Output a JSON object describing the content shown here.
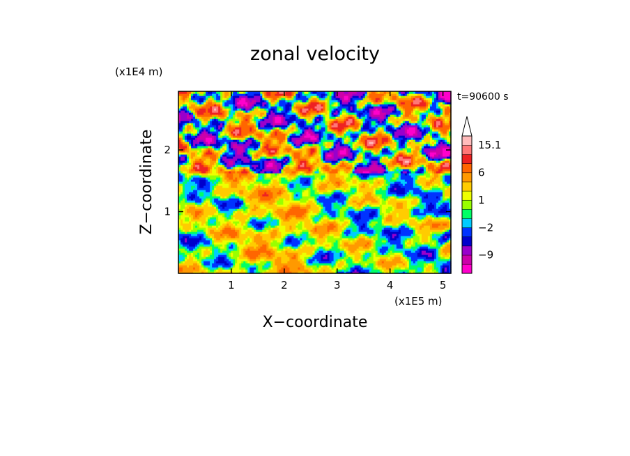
{
  "chart_data": {
    "type": "heatmap",
    "title": "zonal velocity",
    "xlabel": "X−coordinate",
    "ylabel": "Z−coordinate",
    "x_unit": "(x1E5 m)",
    "y_unit": "(x1E4 m)",
    "time_label": "t=90600 s",
    "xlim": [
      0,
      5.15
    ],
    "ylim": [
      0,
      2.95
    ],
    "x_ticks": [
      {
        "value": 1,
        "label": "1"
      },
      {
        "value": 2,
        "label": "2"
      },
      {
        "value": 3,
        "label": "3"
      },
      {
        "value": 4,
        "label": "4"
      },
      {
        "value": 5,
        "label": "5"
      }
    ],
    "y_ticks": [
      {
        "value": 1,
        "label": "1"
      },
      {
        "value": 2,
        "label": "2"
      }
    ],
    "colorbar": {
      "levels": [
        -15,
        -12,
        -9,
        -6,
        -4,
        -2,
        -1,
        0,
        1,
        2,
        4,
        6,
        9,
        12,
        15.1
      ],
      "colors": [
        "#ff00cc",
        "#cc00aa",
        "#9900cc",
        "#0000cc",
        "#0033ff",
        "#00ccff",
        "#00ff66",
        "#99ff00",
        "#eeff00",
        "#ffcc00",
        "#ff9900",
        "#ff6600",
        "#ee2222",
        "#ff7777",
        "#ffbbbb"
      ],
      "labels": [
        {
          "value": -9,
          "label": "−9"
        },
        {
          "value": -2,
          "label": "−2"
        },
        {
          "value": 1,
          "label": "1"
        },
        {
          "value": 6,
          "label": "6"
        },
        {
          "value": 15.1,
          "label": "15.1"
        }
      ],
      "extend_max": true
    }
  }
}
